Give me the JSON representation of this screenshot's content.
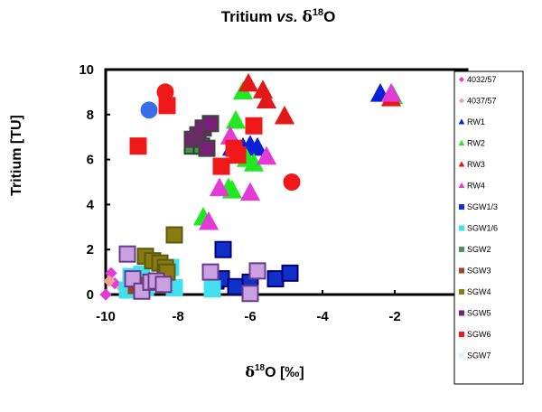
{
  "chart_data": {
    "type": "scatter",
    "title": {
      "main": "Tritium",
      "vs": "vs.",
      "delta": "δ",
      "sup": "18",
      "tail": "O"
    },
    "xlabel": {
      "delta": "δ",
      "sup": "18",
      "tail": "O [‰]"
    },
    "ylabel": "Tritium [TU]",
    "xlim": [
      -10,
      0
    ],
    "ylim": [
      0,
      10
    ],
    "x_ticks": [
      "-10",
      "-8",
      "-6",
      "-4",
      "-2"
    ],
    "x_tick_values": [
      -10,
      -8,
      -6,
      -4,
      -2
    ],
    "y_ticks": [
      "0",
      "2",
      "4",
      "6",
      "8",
      "10"
    ],
    "y_tick_values": [
      0,
      2,
      4,
      6,
      8,
      10
    ],
    "grid": false,
    "legend_position": "right",
    "series": [
      {
        "name": "4032/57",
        "marker": "diamond",
        "color": "#e23bd6",
        "border": "#e23bd6",
        "points": [
          [
            -10.0,
            0.0
          ],
          [
            -9.85,
            0.95
          ],
          [
            -9.75,
            0.5
          ]
        ]
      },
      {
        "name": "4037/57",
        "marker": "diamond",
        "color": "#f0a090",
        "border": "#f0a090",
        "points": [
          [
            -9.9,
            0.6
          ],
          [
            -9.55,
            0.3
          ]
        ]
      },
      {
        "name": "RW1",
        "marker": "triangle",
        "color": "#0a1fd8",
        "border": "#0a1fd8",
        "points": [
          [
            -6.5,
            6.5
          ],
          [
            -6.35,
            6.3
          ],
          [
            -6.2,
            6.5
          ],
          [
            -6.0,
            6.6
          ],
          [
            -5.8,
            6.5
          ],
          [
            -2.4,
            8.9
          ]
        ]
      },
      {
        "name": "RW2",
        "marker": "triangle",
        "color": "#22e822",
        "border": "#22e822",
        "points": [
          [
            -7.3,
            3.4
          ],
          [
            -6.6,
            4.7
          ],
          [
            -6.5,
            4.6
          ],
          [
            -6.4,
            7.7
          ],
          [
            -6.2,
            9.0
          ],
          [
            -6.1,
            6.0
          ],
          [
            -5.9,
            5.8
          ],
          [
            -2.05,
            8.8
          ]
        ]
      },
      {
        "name": "RW3",
        "marker": "triangle",
        "color": "#e41818",
        "border": "#e41818",
        "points": [
          [
            -6.05,
            9.35
          ],
          [
            -5.65,
            9.05
          ],
          [
            -5.55,
            8.6
          ],
          [
            -5.05,
            7.9
          ],
          [
            -2.1,
            8.7
          ]
        ]
      },
      {
        "name": "RW4",
        "marker": "triangle",
        "color": "#e23bd6",
        "border": "#e23bd6",
        "points": [
          [
            -7.15,
            3.2
          ],
          [
            -6.85,
            4.7
          ],
          [
            -6.55,
            7.0
          ],
          [
            -6.0,
            4.5
          ],
          [
            -5.55,
            6.1
          ],
          [
            -2.1,
            8.9
          ]
        ]
      },
      {
        "name": "SGW1/3",
        "marker": "square",
        "color": "#1030c8",
        "border": "#000080",
        "points": [
          [
            -6.95,
            0.6
          ],
          [
            -6.8,
            0.7
          ],
          [
            -6.75,
            2.0
          ],
          [
            -6.4,
            0.35
          ],
          [
            -6.0,
            0.55
          ],
          [
            -5.3,
            0.7
          ],
          [
            -4.9,
            0.95
          ]
        ]
      },
      {
        "name": "SGW1/6",
        "marker": "square",
        "color": "#40e0f0",
        "border": "#40e0f0",
        "points": [
          [
            -9.4,
            0.2
          ],
          [
            -9.3,
            0.8
          ],
          [
            -9.15,
            0.5
          ],
          [
            -9.0,
            0.9
          ],
          [
            -8.9,
            0.3
          ],
          [
            -8.8,
            0.6
          ],
          [
            -8.2,
            1.2
          ],
          [
            -8.1,
            0.3
          ],
          [
            -7.05,
            0.25
          ]
        ]
      },
      {
        "name": "SGW2",
        "marker": "square",
        "color": "#508f5a",
        "border": "#1e4a1e",
        "points": [
          [
            -7.6,
            6.6
          ],
          [
            -7.35,
            6.6
          ]
        ]
      },
      {
        "name": "SGW3",
        "marker": "square",
        "color": "#a04020",
        "border": "#a04020",
        "points": [
          [
            -9.15,
            0.4
          ]
        ]
      },
      {
        "name": "SGW4",
        "marker": "square",
        "color": "#8a7a10",
        "border": "#5a5a10",
        "points": [
          [
            -8.9,
            1.7
          ],
          [
            -8.7,
            1.5
          ],
          [
            -8.5,
            1.4
          ],
          [
            -8.35,
            1.2
          ],
          [
            -8.3,
            1.0
          ],
          [
            -8.1,
            2.65
          ]
        ]
      },
      {
        "name": "SGW5",
        "marker": "square",
        "color": "#7a1e78",
        "border": "#3a4a3a",
        "points": [
          [
            -7.6,
            6.9
          ],
          [
            -7.45,
            7.1
          ],
          [
            -7.3,
            7.4
          ],
          [
            -7.1,
            7.6
          ],
          [
            -7.2,
            6.5
          ]
        ]
      },
      {
        "name": "SGW6",
        "marker": "square",
        "color": "#f01818",
        "border": "#f01818",
        "points": [
          [
            -9.1,
            6.6
          ],
          [
            -8.3,
            8.4
          ],
          [
            -6.8,
            5.7
          ],
          [
            -6.45,
            6.5
          ],
          [
            -6.35,
            6.2
          ],
          [
            -5.9,
            7.5
          ]
        ]
      },
      {
        "name": "SGW7",
        "marker": "square",
        "color": "#dcf4fa",
        "border": "#c0e8f0",
        "points": []
      },
      {
        "name": "",
        "marker": "square",
        "color": "#c9a0e0",
        "border": "#6a3a8a",
        "points": [
          [
            -9.4,
            1.8
          ],
          [
            -9.25,
            0.7
          ],
          [
            -9.0,
            0.15
          ],
          [
            -8.75,
            0.55
          ],
          [
            -8.6,
            0.6
          ],
          [
            -8.4,
            0.45
          ],
          [
            -7.1,
            1.0
          ],
          [
            -6.0,
            0.05
          ],
          [
            -5.8,
            1.05
          ]
        ]
      },
      {
        "name": "",
        "marker": "circle",
        "color": "#3a6ee8",
        "border": "#3a6ee8",
        "points": [
          [
            -8.8,
            8.2
          ]
        ]
      },
      {
        "name": "",
        "marker": "circle",
        "color": "#f01818",
        "border": "#f01818",
        "points": [
          [
            -8.35,
            9.0
          ],
          [
            -4.85,
            5.0
          ]
        ]
      }
    ]
  }
}
